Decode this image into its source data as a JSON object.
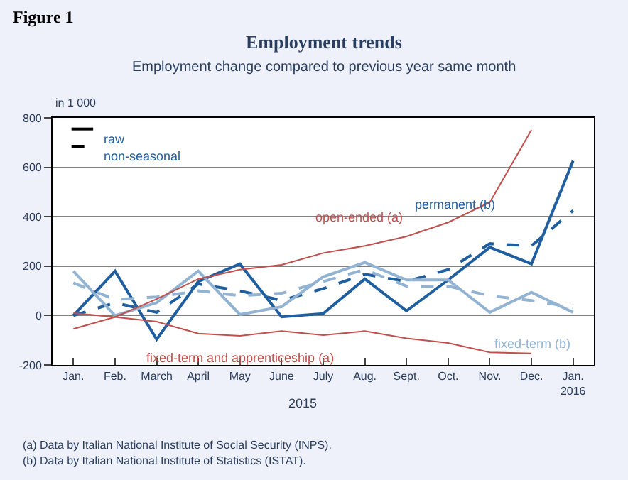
{
  "chart_data": {
    "type": "line",
    "title": "Employment trends",
    "subtitle": "Employment change compared to previous year same month",
    "ylabel": "in 1 000",
    "categories": [
      "Jan.",
      "Feb.",
      "March",
      "April",
      "May",
      "June",
      "July",
      "Aug.",
      "Sept.",
      "Oct.",
      "Nov.",
      "Dec.",
      "Jan.\n2016"
    ],
    "series": [
      {
        "name": "permanent (b)",
        "color": "#1f5fa0",
        "line_style": "solid",
        "values": [
          0,
          180,
          -96,
          138,
          209,
          -5,
          8,
          148,
          19,
          144,
          276,
          209,
          626
        ]
      },
      {
        "color": "#1f5fa0",
        "line_style": "dashed",
        "values": [
          0,
          52,
          13,
          128,
          100,
          61,
          109,
          167,
          138,
          186,
          291,
          282,
          425
        ]
      },
      {
        "name": "fixed-term (b)",
        "color": "#93b3d3",
        "line_style": "solid",
        "values": [
          180,
          0,
          52,
          180,
          4,
          36,
          157,
          215,
          144,
          144,
          13,
          94,
          13
        ]
      },
      {
        "color": "#93b3d3",
        "line_style": "dashed",
        "values": [
          132,
          65,
          75,
          100,
          80,
          90,
          138,
          186,
          119,
          119,
          80,
          61,
          33
        ]
      },
      {
        "name": "open-ended (a)",
        "color": "#c0504d",
        "line_style": "solid",
        "values": [
          -54,
          -6,
          67,
          148,
          186,
          205,
          253,
          282,
          320,
          377,
          458,
          751,
          null
        ]
      },
      {
        "name": "fixed-term and apprenticeship (a)",
        "color": "#c0504d",
        "line_style": "solid",
        "values": [
          10,
          -6,
          -25,
          -73,
          -82,
          -63,
          -79,
          -63,
          -92,
          -111,
          -149,
          -153,
          null
        ]
      }
    ],
    "ylim": [
      -200,
      800
    ],
    "yticks": [
      -200,
      0,
      200,
      400,
      600,
      800
    ],
    "grid": "y",
    "annotations": [
      "Figure 1",
      "raw",
      "non-seasonal",
      "2015",
      "(a) Data by Italian National Institute of Social Security (INPS).",
      "(b) Data by Italian National Institute of Statistics (ISTAT)."
    ]
  }
}
